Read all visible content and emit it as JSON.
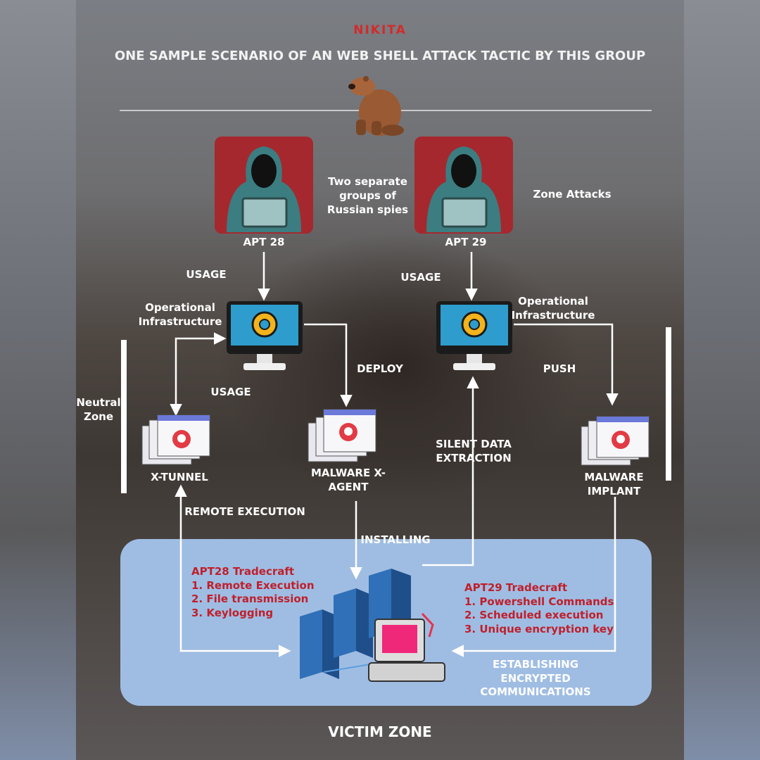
{
  "brand": "NIKITA",
  "title": "ONE SAMPLE SCENARIO OF AN WEB SHELL ATTACK TACTIC BY THIS GROUP",
  "actors": {
    "apt28": "APT 28",
    "apt29": "APT 29",
    "middle_note": [
      "Two separate",
      "groups of",
      "Russian spies"
    ],
    "zone_attacks": "Zone Attacks"
  },
  "labels": {
    "usage_left": "USAGE",
    "usage_right": "USAGE",
    "op_infra_left": [
      "Operational",
      "Infrastructure"
    ],
    "op_infra_right": [
      "Operational",
      "Infrastructure"
    ],
    "deploy": "DEPLOY",
    "push": "PUSH",
    "usage_mid": "USAGE",
    "neutral_zone": [
      "Neutral",
      "Zone"
    ],
    "x_tunnel": "X-TUNNEL",
    "malware_x_agent": [
      "MALWARE X-",
      "AGENT"
    ],
    "silent_data": [
      "SILENT DATA",
      "EXTRACTION"
    ],
    "malware_implant": [
      "MALWARE",
      "IMPLANT"
    ],
    "remote_execution": "REMOTE EXECUTION",
    "installing": "INSTALLING",
    "establishing": [
      "ESTABLISHING",
      "ENCRYPTED",
      "COMMUNICATIONS"
    ],
    "victim_zone": "VICTIM ZONE"
  },
  "tradecraft": {
    "apt28": [
      "APT28 Tradecraft",
      "1. Remote Execution",
      "2. File transmission",
      "3. Keylogging"
    ],
    "apt29": [
      "APT29 Tradecraft",
      "1. Powershell Commands",
      "2. Scheduled execution",
      "3. Unique encryption key"
    ]
  },
  "icons": [
    "bear-icon",
    "hacker-icon",
    "monitor-gear-icon",
    "malware-windows-icon",
    "server-rack-icon",
    "retro-computer-icon"
  ],
  "colors": {
    "accent_red": "#d42a2a",
    "card_red": "#a5282e",
    "victim_blue": "#9fbde3",
    "tradecraft_red": "#c01f2a"
  }
}
